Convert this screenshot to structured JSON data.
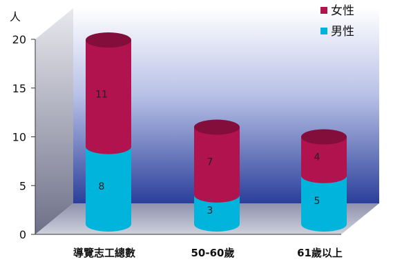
{
  "chart_data": {
    "type": "bar",
    "stacked": true,
    "style": "3d-cylinder",
    "categories": [
      "導覽志工總數",
      "50-60歲",
      "61歲以上"
    ],
    "series": [
      {
        "name": "男性",
        "values": [
          8,
          3,
          5
        ],
        "color": "#00b4dc"
      },
      {
        "name": "女性",
        "values": [
          11,
          7,
          4
        ],
        "color": "#b0134e"
      }
    ],
    "ylabel": "人",
    "ylim": [
      0,
      20
    ],
    "yticks": [
      0,
      5,
      10,
      15,
      20
    ],
    "legend_position": "top-right",
    "grid": false
  }
}
